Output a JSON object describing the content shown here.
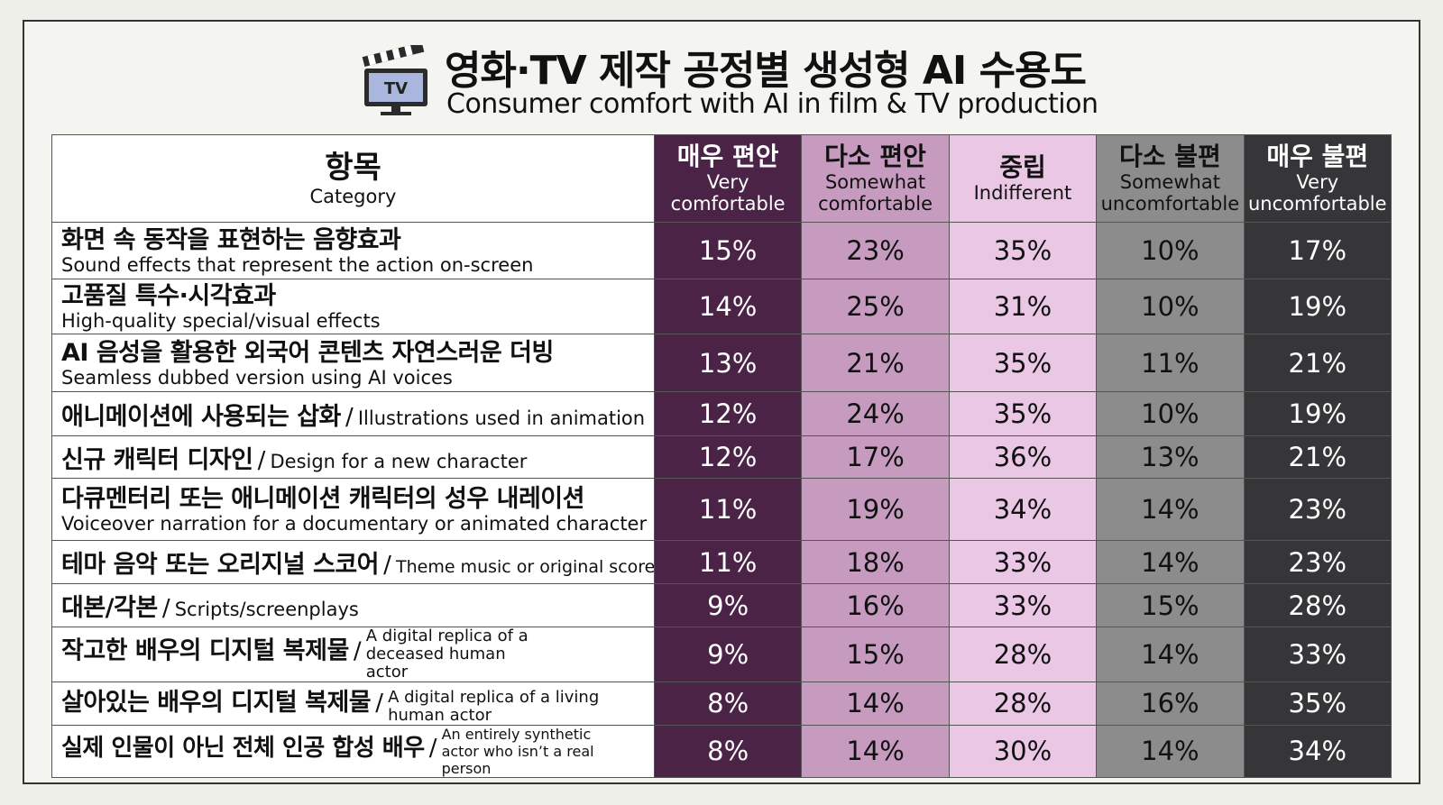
{
  "title_ko": "영화·TV 제작 공정별 생성형 AI 수용도",
  "title_en": "Consumer comfort with AI in film & TV production",
  "tv_label": "TV",
  "colors": {
    "very_comfortable": "#4a2346",
    "somewhat_comfortable": "#c69bbf",
    "indifferent": "#ebc7e6",
    "somewhat_uncomfortable": "#8c8c8c",
    "very_uncomfortable": "#363538"
  },
  "columns": [
    {
      "ko": "항목",
      "en": "Category"
    },
    {
      "ko": "매우 편안",
      "en": "Very comfortable"
    },
    {
      "ko": "다소 편안",
      "en": "Somewhat comfortable"
    },
    {
      "ko": "중립",
      "en": "Indifferent"
    },
    {
      "ko": "다소 불편",
      "en": "Somewhat uncomfortable"
    },
    {
      "ko": "매우 불편",
      "en": "Very uncomfortable"
    }
  ],
  "rows": [
    {
      "ko": "화면 속 동작을 표현하는 음향효과",
      "en": "Sound effects that represent the action on-screen",
      "values": [
        "15%",
        "23%",
        "35%",
        "10%",
        "17%"
      ]
    },
    {
      "ko": "고품질 특수·시각효과",
      "en": "High-quality special/visual effects",
      "values": [
        "14%",
        "25%",
        "31%",
        "10%",
        "19%"
      ]
    },
    {
      "ko": "AI 음성을 활용한 외국어 콘텐츠 자연스러운 더빙",
      "en": "Seamless dubbed version using AI voices",
      "values": [
        "13%",
        "21%",
        "35%",
        "11%",
        "21%"
      ]
    },
    {
      "ko": "애니메이션에 사용되는 삽화",
      "en": "Illustrations used in animation",
      "values": [
        "12%",
        "24%",
        "35%",
        "10%",
        "19%"
      ]
    },
    {
      "ko": "신규 캐릭터 디자인",
      "en": "Design for a new character",
      "values": [
        "12%",
        "17%",
        "36%",
        "13%",
        "21%"
      ]
    },
    {
      "ko": "다큐멘터리 또는 애니메이션 캐릭터의 성우 내레이션",
      "en": "Voiceover narration for a documentary or animated character",
      "values": [
        "11%",
        "19%",
        "34%",
        "14%",
        "23%"
      ]
    },
    {
      "ko": "테마 음악 또는 오리지널 스코어",
      "en": "Theme music or original score",
      "values": [
        "11%",
        "18%",
        "33%",
        "14%",
        "23%"
      ]
    },
    {
      "ko": "대본/각본",
      "en": "Scripts/screenplays",
      "values": [
        "9%",
        "16%",
        "33%",
        "15%",
        "28%"
      ]
    },
    {
      "ko": "작고한 배우의 디지털 복제물",
      "en": "A digital replica of a deceased human actor",
      "values": [
        "9%",
        "15%",
        "28%",
        "14%",
        "33%"
      ]
    },
    {
      "ko": "살아있는 배우의 디지털 복제물",
      "en": "A digital replica of a living human actor",
      "values": [
        "8%",
        "14%",
        "28%",
        "16%",
        "35%"
      ]
    },
    {
      "ko": "실제 인물이 아닌 전체 인공 합성 배우",
      "en": "An entirely synthetic actor who isn’t a real person",
      "values": [
        "8%",
        "14%",
        "30%",
        "14%",
        "34%"
      ]
    }
  ],
  "chart_data": {
    "type": "table",
    "title": "영화·TV 제작 공정별 생성형 AI 수용도",
    "subtitle": "Consumer comfort with AI in film & TV production",
    "series": [
      {
        "name": "매우 편안 / Very comfortable",
        "values": [
          15,
          14,
          13,
          12,
          12,
          11,
          11,
          9,
          9,
          8,
          8
        ]
      },
      {
        "name": "다소 편안 / Somewhat comfortable",
        "values": [
          23,
          25,
          21,
          24,
          17,
          19,
          18,
          16,
          15,
          14,
          14
        ]
      },
      {
        "name": "중립 / Indifferent",
        "values": [
          35,
          31,
          35,
          35,
          36,
          34,
          33,
          33,
          28,
          28,
          30
        ]
      },
      {
        "name": "다소 불편 / Somewhat uncomfortable",
        "values": [
          10,
          10,
          11,
          10,
          13,
          14,
          14,
          15,
          14,
          16,
          14
        ]
      },
      {
        "name": "매우 불편 / Very uncomfortable",
        "values": [
          17,
          19,
          21,
          19,
          21,
          23,
          23,
          28,
          33,
          35,
          34
        ]
      }
    ]
  }
}
